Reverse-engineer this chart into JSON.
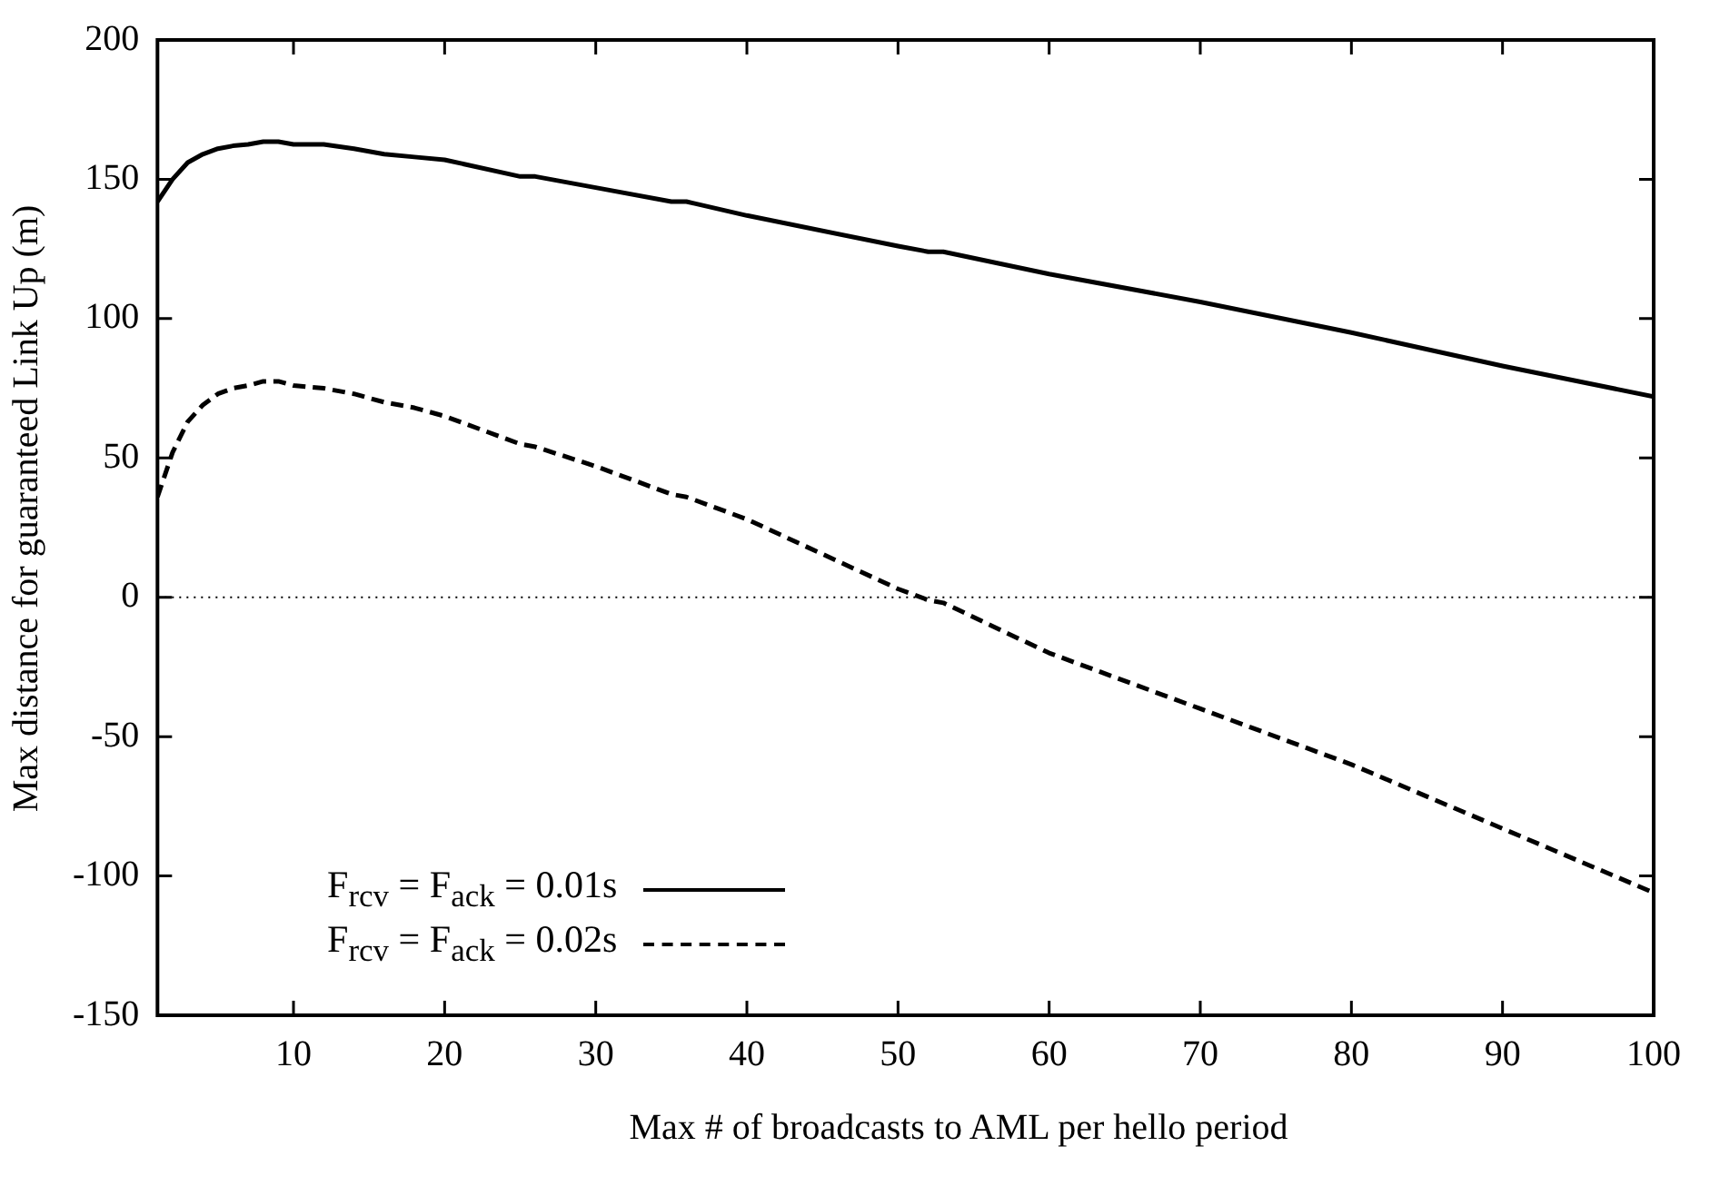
{
  "chart_data": {
    "type": "line",
    "xlabel": "Max # of broadcasts to AML per hello period",
    "ylabel": "Max distance for guaranteed Link Up (m)",
    "x": [
      1,
      2,
      3,
      4,
      5,
      6,
      7,
      8,
      9,
      10,
      12,
      14,
      16,
      18,
      20,
      25,
      26,
      30,
      35,
      36,
      40,
      50,
      52,
      53,
      60,
      70,
      80,
      90,
      100
    ],
    "series": [
      {
        "name": "F$_{rcv}$ = F$_{ack}$ = 0.01s",
        "color": "#000000",
        "line_style": "solid",
        "values": [
          142,
          150,
          156,
          159,
          161,
          162,
          162.5,
          163.5,
          163.5,
          162.5,
          162.5,
          161,
          159,
          158,
          157,
          151,
          151,
          147,
          142,
          142,
          137,
          126,
          124,
          124,
          116,
          106,
          95,
          83,
          72
        ]
      },
      {
        "name": "F$_{rcv}$ = F$_{ack}$ = 0.02s",
        "color": "#000000",
        "line_style": "dashed",
        "values": [
          36,
          52,
          63,
          69,
          73,
          75,
          76,
          77.5,
          77.5,
          76,
          75,
          73,
          70,
          68,
          65,
          55,
          54,
          47,
          37,
          36,
          28,
          3,
          -1,
          -2,
          -20,
          -40,
          -60,
          -83,
          -106
        ]
      }
    ],
    "xlim": [
      1,
      100
    ],
    "xticks": [
      10,
      20,
      30,
      40,
      50,
      60,
      70,
      80,
      90,
      100
    ],
    "ylim": [
      -150,
      200
    ],
    "yticks": [
      -150,
      -100,
      -50,
      0,
      50,
      100,
      150,
      200
    ],
    "ref_lines": [
      {
        "axis": "y",
        "value": 0,
        "line_style": "dotted"
      }
    ],
    "legend": "bottom left",
    "grid": false,
    "marker": "none"
  }
}
